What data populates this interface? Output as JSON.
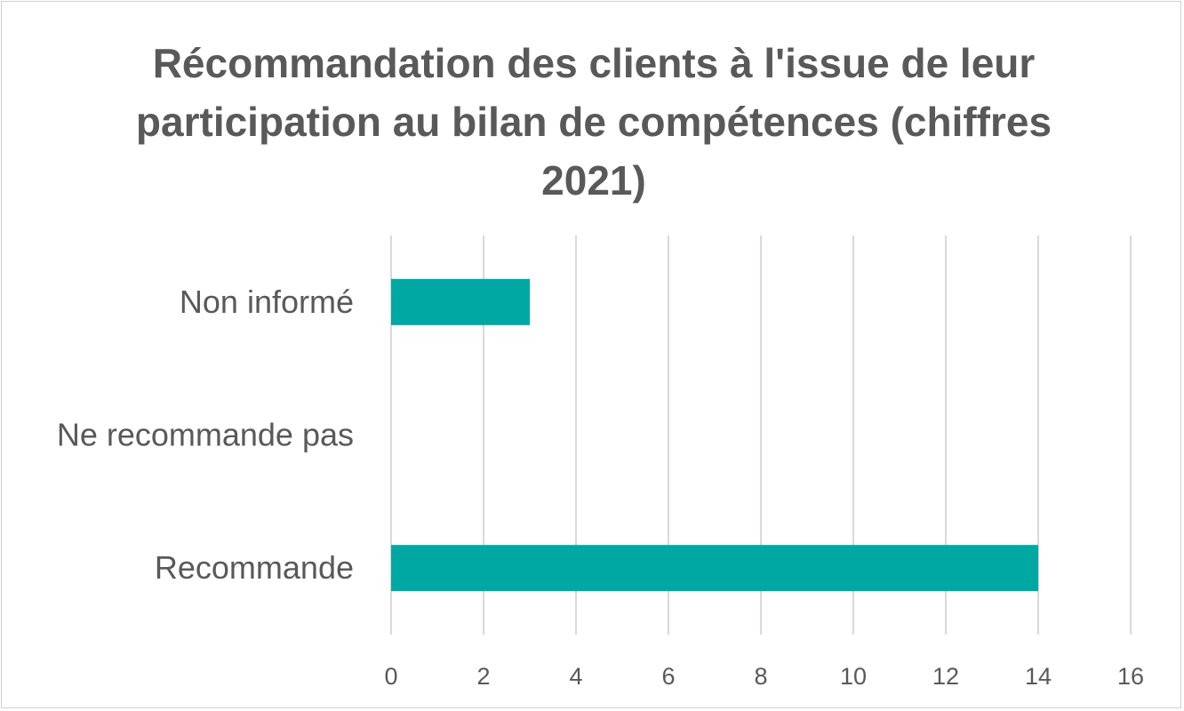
{
  "chart_data": {
    "type": "bar",
    "orientation": "horizontal",
    "title": "Récommandation des clients à l'issue de leur participation au bilan de compétences (chiffres 2021)",
    "categories": [
      "Recommande",
      "Ne recommande pas",
      "Non informé"
    ],
    "series": [
      {
        "values": [
          14,
          0,
          3
        ]
      }
    ],
    "xlim": [
      0,
      16
    ],
    "xticks": [
      0,
      2,
      4,
      6,
      8,
      10,
      12,
      14,
      16
    ],
    "xlabel": "",
    "ylabel": "",
    "grid": "vertical",
    "legend": "none",
    "colors": {
      "bar": "#00A8A4",
      "grid": "#d9d9d9",
      "text": "#595959"
    }
  }
}
